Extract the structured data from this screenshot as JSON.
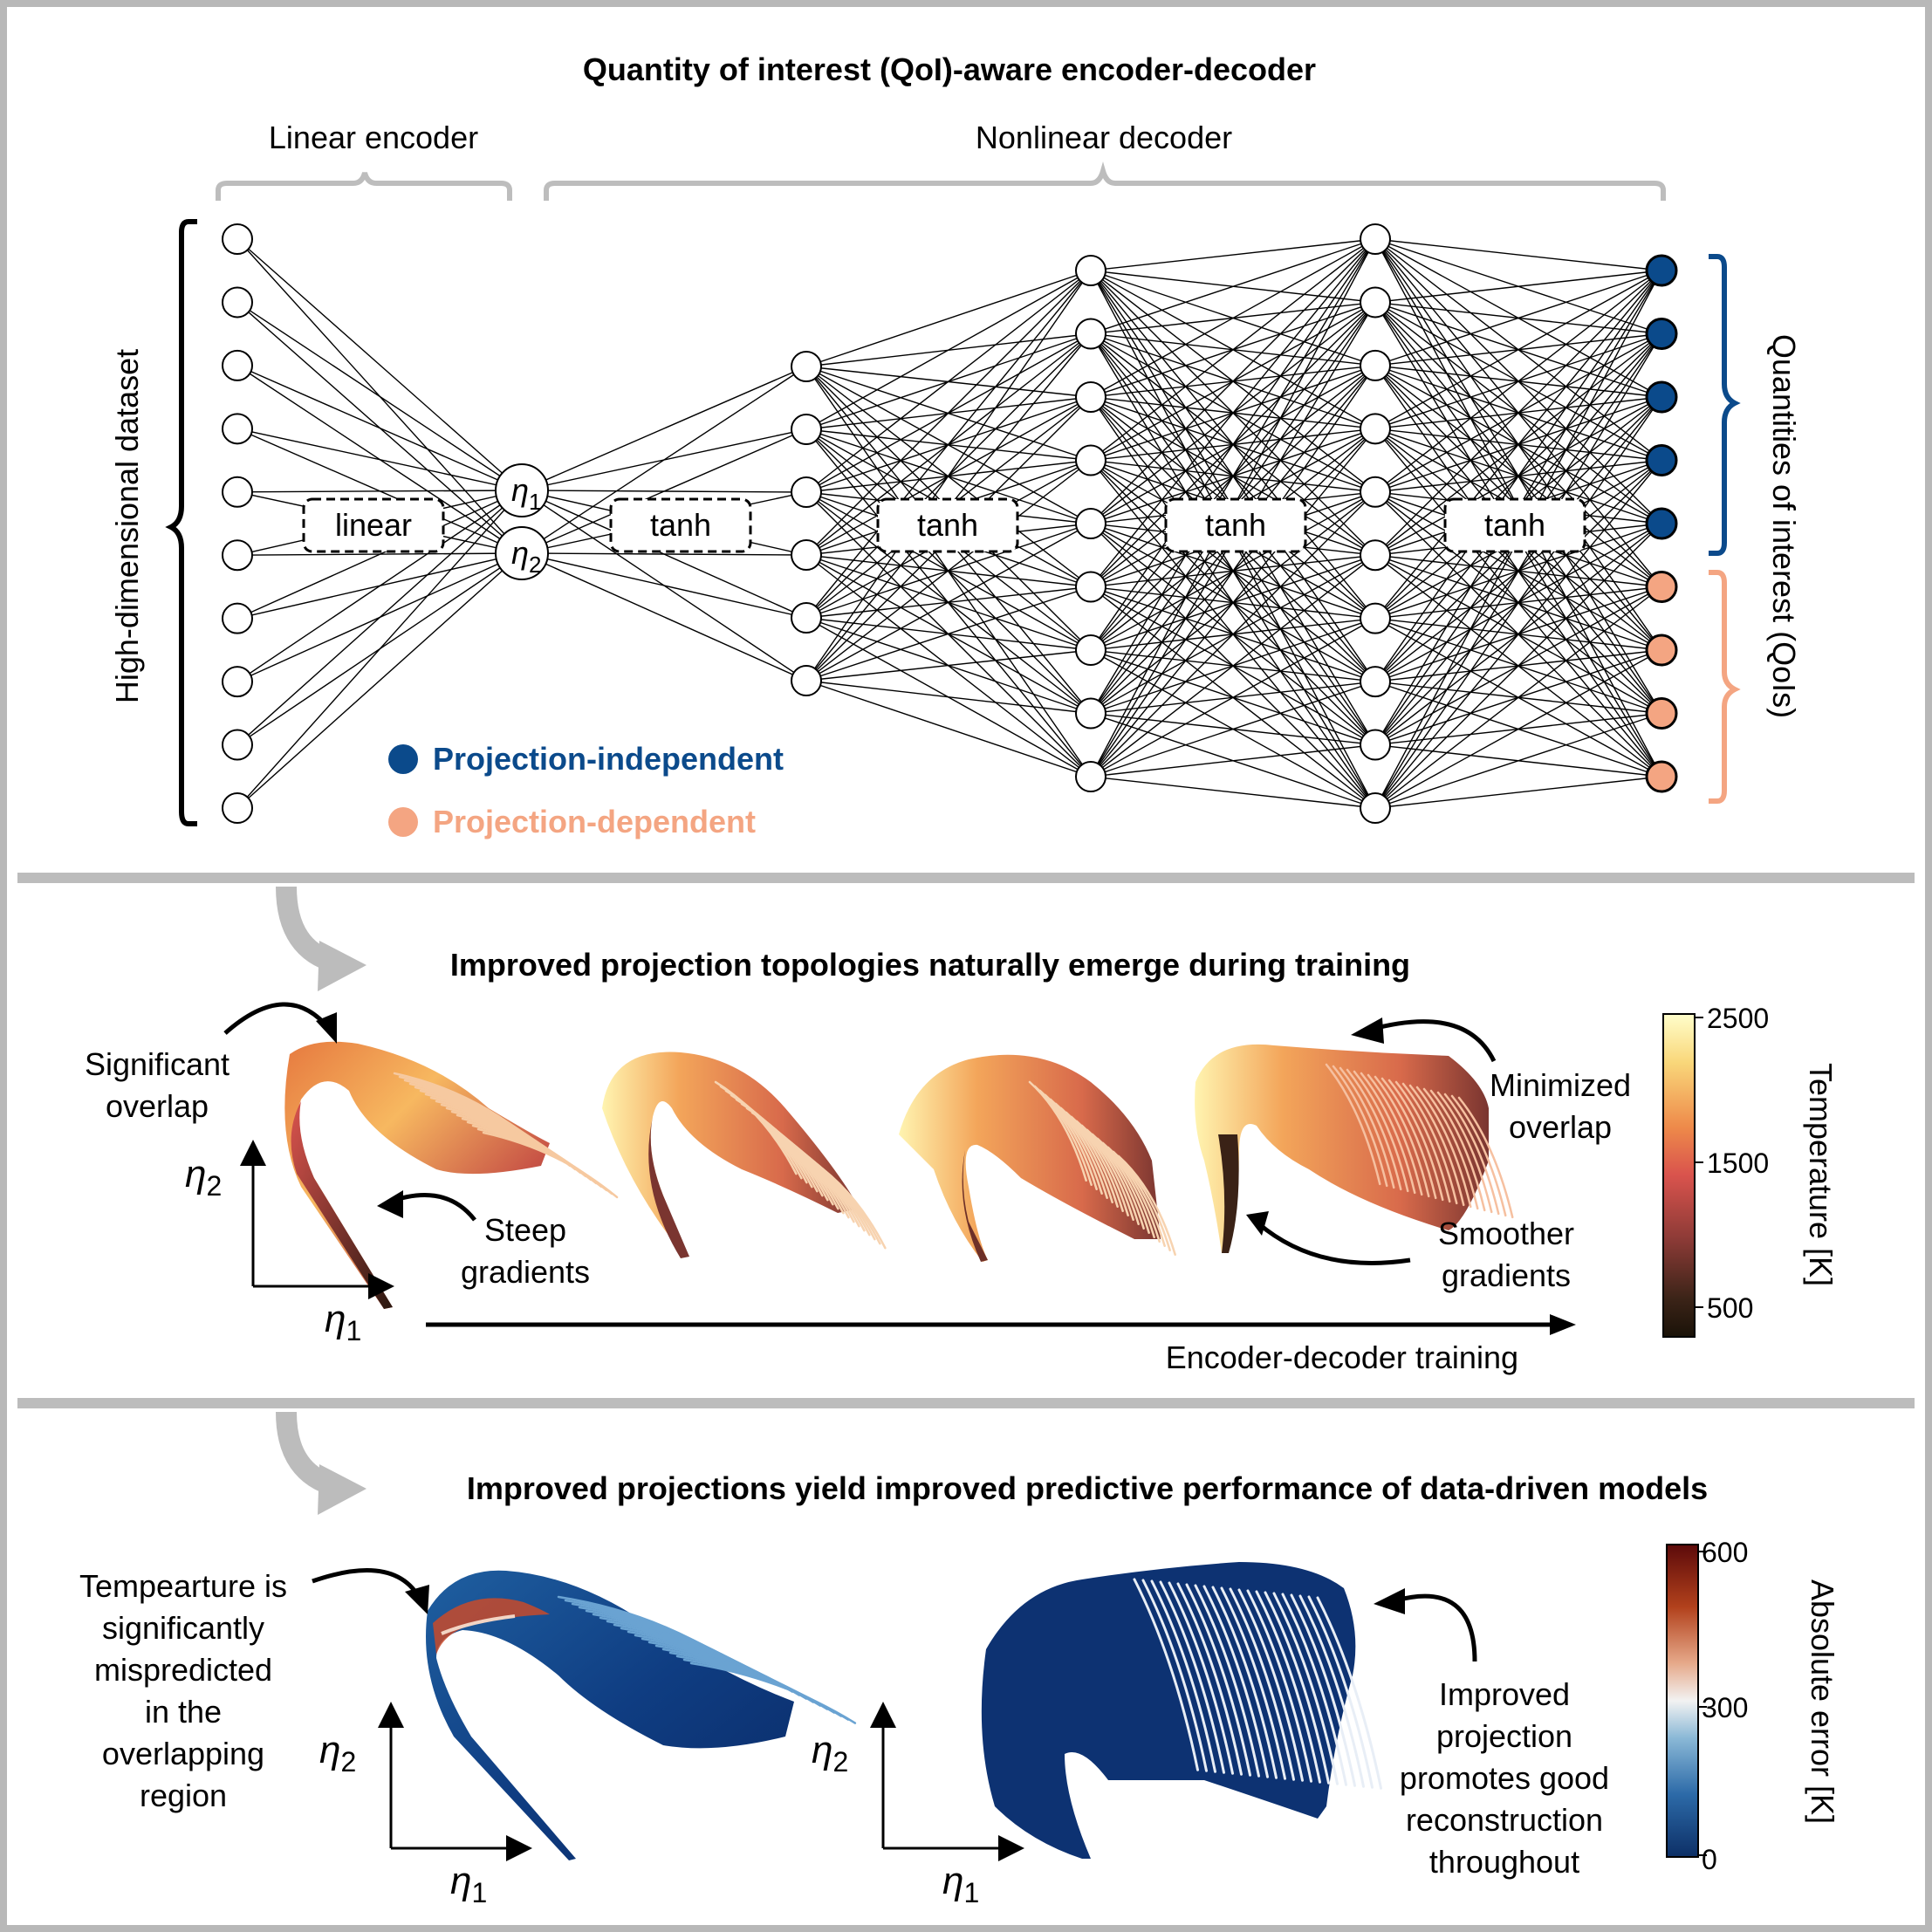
{
  "panel1": {
    "title": "Quantity of interest (QoI)-aware encoder-decoder",
    "encoder_label": "Linear encoder",
    "decoder_label": "Nonlinear decoder",
    "left_label": "High-dimensional dataset",
    "right_label": "Quantities of interest (QoIs)",
    "latent": {
      "eta1": "η",
      "eta1_sub": "1",
      "eta2": "η",
      "eta2_sub": "2"
    },
    "activations": [
      "linear",
      "tanh",
      "tanh",
      "tanh",
      "tanh"
    ],
    "legend": [
      {
        "label": "Projection-independent",
        "color": "#0b4a8b"
      },
      {
        "label": "Projection-dependent",
        "color": "#f4a582"
      }
    ],
    "layer_sizes": [
      10,
      2,
      6,
      9,
      10,
      9
    ],
    "output_independent_count": 5,
    "output_dependent_count": 4
  },
  "panel2": {
    "title": "Improved projection topologies naturally emerge during training",
    "annotations": {
      "significant_overlap": [
        "Significant",
        "overlap"
      ],
      "steep_gradients": [
        "Steep",
        "gradients"
      ],
      "minimized_overlap": [
        "Minimized",
        "overlap"
      ],
      "smoother_gradients": [
        "Smoother",
        "gradients"
      ]
    },
    "axis": {
      "x": "η",
      "x_sub": "1",
      "y": "η",
      "y_sub": "2"
    },
    "training_label": "Encoder-decoder training",
    "colorbar": {
      "label": "Temperature [K]",
      "ticks": [
        "2500",
        "1500",
        "500"
      ],
      "colors": [
        "#fffecb",
        "#f8c867",
        "#ee8a4a",
        "#d9534d",
        "#8b3a36",
        "#3c2418",
        "#1a1208"
      ]
    }
  },
  "panel3": {
    "title": "Improved projections yield improved predictive performance of data-driven models",
    "left_note": [
      "Tempearture is",
      "significantly",
      "mispredicted",
      "in the",
      "overlapping",
      "region"
    ],
    "right_note": [
      "Improved",
      "projection",
      "promotes good",
      "reconstruction",
      "throughout"
    ],
    "axis": {
      "x": "η",
      "x_sub": "1",
      "y": "η",
      "y_sub": "2"
    },
    "colorbar": {
      "label": "Absolute error [K]",
      "ticks": [
        "600",
        "300",
        "0"
      ],
      "colors": [
        "#5c0a0a",
        "#b2411c",
        "#e6a98a",
        "#f2f2f2",
        "#8ab8d6",
        "#2c6aa8",
        "#0d2f66"
      ]
    }
  }
}
